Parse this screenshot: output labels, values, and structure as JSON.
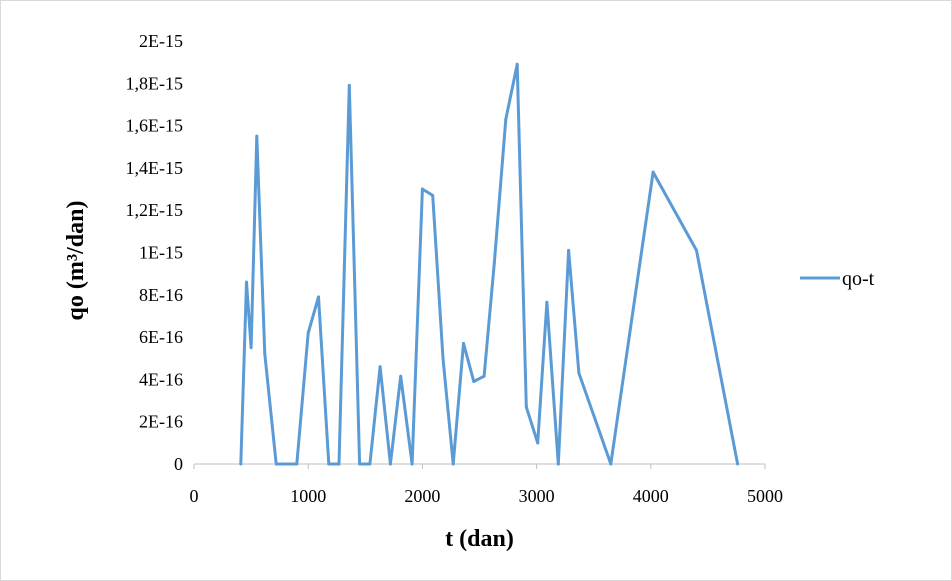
{
  "chart_data": {
    "type": "line",
    "xlabel": "t (dan)",
    "ylabel": "qo (m³/dan)",
    "xlim": [
      0,
      5000
    ],
    "ylim": [
      0,
      2e-15
    ],
    "x_ticks": [
      0,
      1000,
      2000,
      3000,
      4000,
      5000
    ],
    "x_tick_labels": [
      "0",
      "1000",
      "2000",
      "3000",
      "4000",
      "5000"
    ],
    "y_ticks": [
      0,
      2e-16,
      4e-16,
      6e-16,
      8e-16,
      1e-15,
      1.2e-15,
      1.4e-15,
      1.6e-15,
      1.8e-15,
      2e-15
    ],
    "y_tick_labels": [
      "0",
      "2E-16",
      "4E-16",
      "6E-16",
      "8E-16",
      "1E-15",
      "1,2E-15",
      "1,4E-15",
      "1,6E-15",
      "1,8E-15",
      "2E-15"
    ],
    "grid": false,
    "legend_position": "right",
    "series": [
      {
        "name": "qo-t",
        "color": "#5B9BD5",
        "x": [
          410,
          460,
          500,
          550,
          620,
          720,
          790,
          900,
          1000,
          1090,
          1180,
          1270,
          1360,
          1450,
          1540,
          1630,
          1720,
          1810,
          1910,
          2000,
          2090,
          2180,
          2270,
          2360,
          2450,
          2540,
          2630,
          2730,
          2830,
          2910,
          3010,
          3090,
          3190,
          3280,
          3370,
          3650,
          4020,
          4400,
          4760
        ],
        "y": [
          0,
          8.6e-16,
          5.5e-16,
          1.55e-15,
          5.2e-16,
          0,
          0,
          0,
          6.2e-16,
          7.9e-16,
          0,
          0,
          1.79e-15,
          0,
          0,
          4.6e-16,
          0,
          4.15e-16,
          0,
          1.3e-15,
          1.27e-15,
          5e-16,
          0,
          5.7e-16,
          3.9e-16,
          4.15e-16,
          9.5e-16,
          1.63e-15,
          1.89e-15,
          2.7e-16,
          1e-16,
          7.65e-16,
          0,
          1.01e-15,
          4.3e-16,
          0,
          1.38e-15,
          1.01e-15,
          0
        ]
      }
    ]
  }
}
